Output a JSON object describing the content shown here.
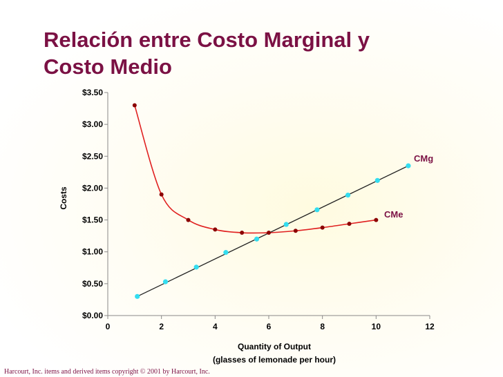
{
  "title": {
    "line1": "Relación entre Costo Marginal y",
    "line2": "Costo Medio"
  },
  "footer": "Harcourt, Inc. items and derived items copyright © 2001 by Harcourt, Inc.",
  "chart_data": {
    "type": "line",
    "title": "Relación entre Costo Marginal y Costo Medio",
    "xlabel_line1": "Quantity of Output",
    "xlabel_line2": "(glasses of lemonade per hour)",
    "ylabel": "Costs",
    "xlim": [
      0,
      12
    ],
    "ylim": [
      0,
      3.5
    ],
    "x_ticks": [
      0,
      2,
      4,
      6,
      8,
      10,
      12
    ],
    "x_tick_labels": [
      "0",
      "2",
      "4",
      "6",
      "8",
      "10",
      "12"
    ],
    "y_ticks": [
      0,
      0.5,
      1.0,
      1.5,
      2.0,
      2.5,
      3.0,
      3.5
    ],
    "y_tick_labels": [
      "$0.00",
      "$0.50",
      "$1.00",
      "$1.50",
      "$2.00",
      "$2.50",
      "$3.00",
      "$3.50"
    ],
    "grid": false,
    "series": [
      {
        "name": "CMe",
        "color": "#8b0000",
        "line_color": "#e02020",
        "x": [
          1,
          2,
          3,
          4,
          5,
          6,
          7,
          8,
          9,
          10
        ],
        "y": [
          3.3,
          1.9,
          1.5,
          1.35,
          1.3,
          1.3,
          1.33,
          1.38,
          1.44,
          1.5
        ]
      },
      {
        "name": "CMg",
        "color": "#33ddf0",
        "line_color": "#222222",
        "x": [
          1.1,
          2.15,
          3.3,
          4.4,
          5.55,
          6.65,
          7.8,
          8.95,
          10.05,
          11.2
        ],
        "y": [
          0.3,
          0.53,
          0.76,
          0.99,
          1.2,
          1.43,
          1.66,
          1.89,
          2.12,
          2.35
        ]
      }
    ]
  }
}
